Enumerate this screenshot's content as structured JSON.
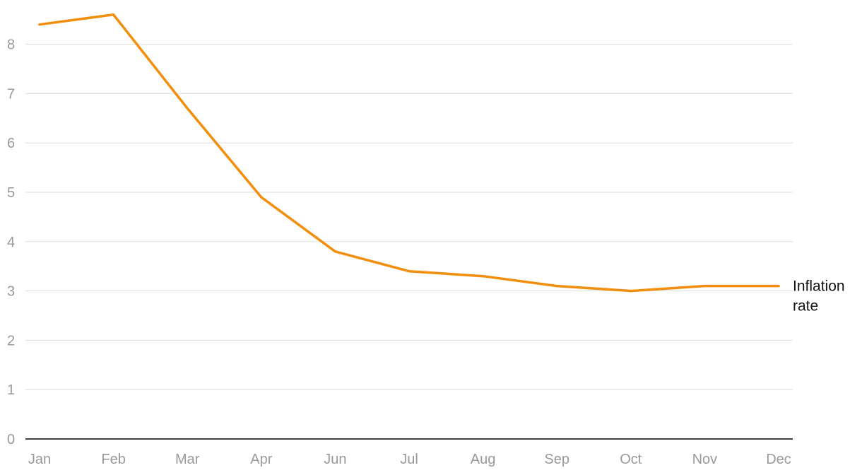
{
  "chart_data": {
    "type": "line",
    "title": "",
    "xlabel": "",
    "ylabel": "",
    "categories": [
      "Jan",
      "Feb",
      "Mar",
      "Apr",
      "Jun",
      "Jul",
      "Aug",
      "Sep",
      "Oct",
      "Nov",
      "Dec"
    ],
    "yticks": [
      0,
      1,
      2,
      3,
      4,
      5,
      6,
      7,
      8
    ],
    "ylim": [
      0,
      8.6
    ],
    "grid": true,
    "series": [
      {
        "name": "Inflation rate",
        "label_lines": [
          "Inflation",
          "rate"
        ],
        "color": "#f28e0b",
        "values": [
          8.4,
          8.6,
          6.7,
          4.9,
          3.8,
          3.4,
          3.3,
          3.1,
          3.0,
          3.1,
          3.1
        ]
      }
    ]
  }
}
